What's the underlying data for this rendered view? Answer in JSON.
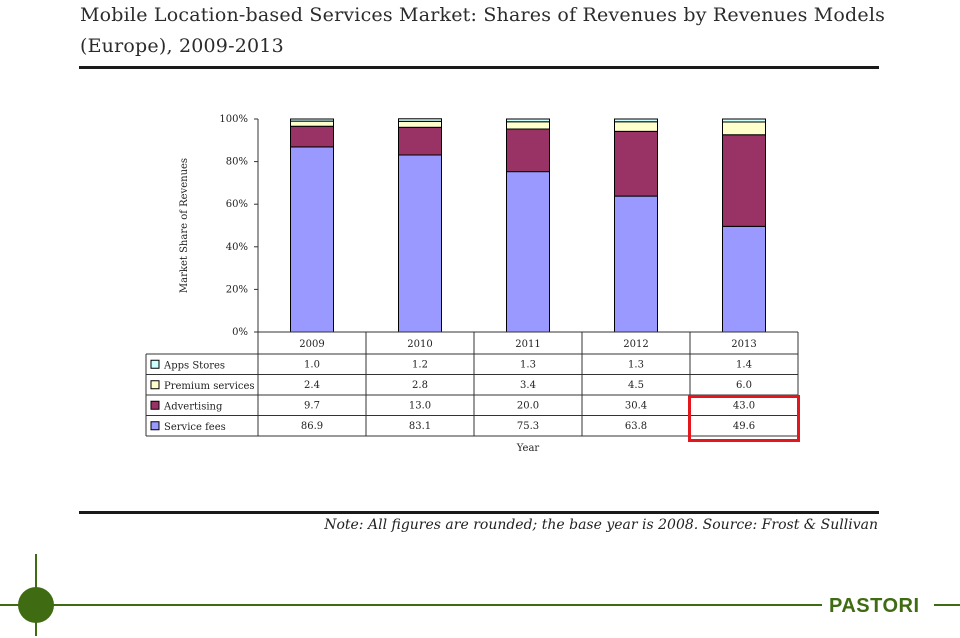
{
  "page": {
    "title": "Mobile Location-based Services Market: Shares of Revenues by Revenues Models (Europe), 2009-2013",
    "note": "Note: All figures are rounded; the base year is 2008. Source: Frost & Sullivan",
    "brand": "PASTORI",
    "colors": {
      "brand_green": "#3f6b12",
      "highlight_red": "#e2161c"
    }
  },
  "chart_data": {
    "type": "bar",
    "stacked": true,
    "categories": [
      "2009",
      "2010",
      "2011",
      "2012",
      "2013"
    ],
    "series": [
      {
        "name": "Service fees",
        "color": "#9999ff",
        "values": [
          86.9,
          83.1,
          75.3,
          63.8,
          49.6
        ]
      },
      {
        "name": "Advertising",
        "color": "#993366",
        "values": [
          9.7,
          13.0,
          20.0,
          30.4,
          43.0
        ]
      },
      {
        "name": "Premium services",
        "color": "#ffffcc",
        "values": [
          2.4,
          2.8,
          3.4,
          4.5,
          6.0
        ]
      },
      {
        "name": "Apps Stores",
        "color": "#ccffff",
        "values": [
          1.0,
          1.2,
          1.3,
          1.3,
          1.4
        ]
      }
    ],
    "table_rows": [
      {
        "label": "Apps Stores",
        "cells": [
          "1.0",
          "1.2",
          "1.3",
          "1.3",
          "1.4"
        ]
      },
      {
        "label": "Premium services",
        "cells": [
          "2.4",
          "2.8",
          "3.4",
          "4.5",
          "6.0"
        ]
      },
      {
        "label": "Advertising",
        "cells": [
          "9.7",
          "13.0",
          "20.0",
          "30.4",
          "43.0"
        ]
      },
      {
        "label": "Service fees",
        "cells": [
          "86.9",
          "83.1",
          "75.3",
          "63.8",
          "49.6"
        ]
      }
    ],
    "ylabel": "Market Share of Revenues",
    "xlabel": "Year",
    "ylim": [
      0,
      100
    ],
    "yticks": [
      "0%",
      "20%",
      "40%",
      "60%",
      "80%",
      "100%"
    ],
    "ytick_values": [
      0,
      20,
      40,
      60,
      80,
      100
    ],
    "legend": "table-rows",
    "highlighted_cells": [
      "Advertising 2013",
      "Service fees 2013"
    ]
  }
}
